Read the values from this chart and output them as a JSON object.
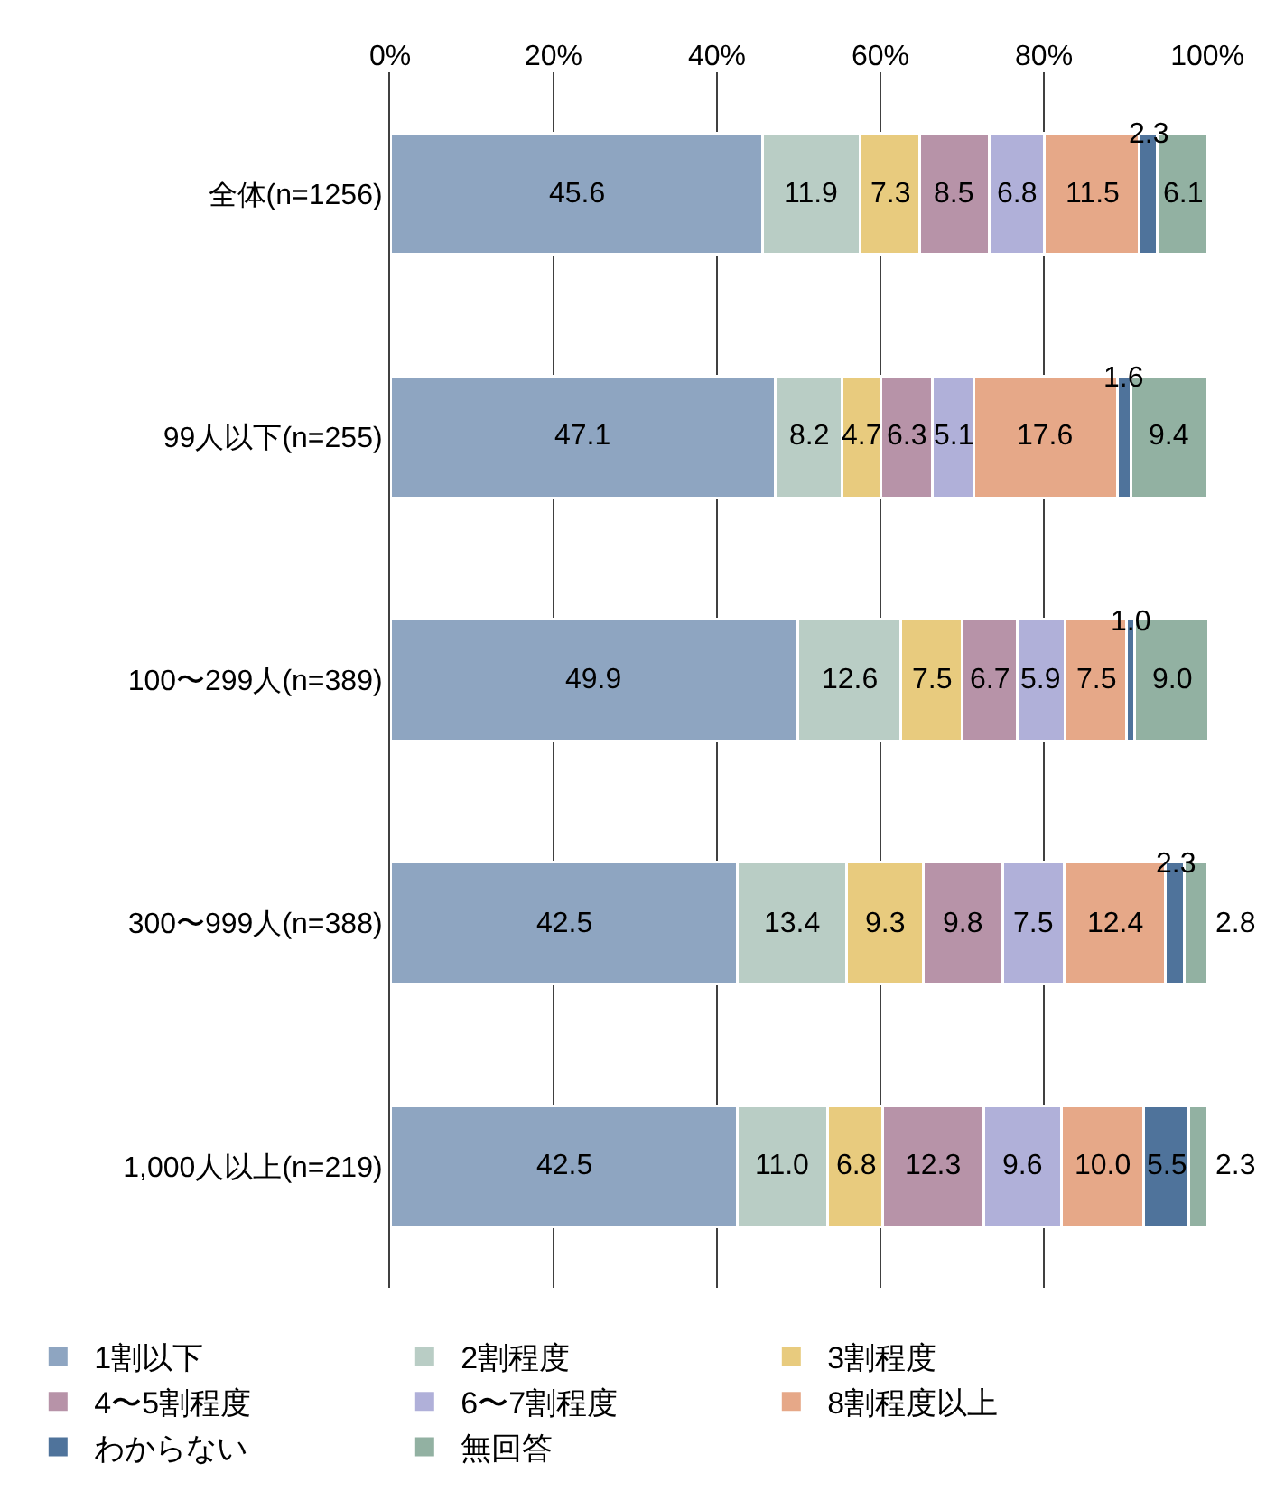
{
  "chart_data": {
    "type": "bar",
    "orientation": "horizontal",
    "stacked": true,
    "grid": "x",
    "legend": "bottom",
    "categories": [
      "全体(n=1256)",
      "99人以下(n=255)",
      "100〜299人(n=389)",
      "300〜999人(n=388)",
      "1,000人以上(n=219)"
    ],
    "xlim": [
      0,
      100.1
    ],
    "xticks": [
      {
        "value": 0,
        "label": "0%"
      },
      {
        "value": 20,
        "label": "20%"
      },
      {
        "value": 40,
        "label": "40%"
      },
      {
        "value": 60,
        "label": "60%"
      },
      {
        "value": 80,
        "label": "80%"
      },
      {
        "value": 100,
        "label": "100%"
      }
    ],
    "series": [
      {
        "name": "1割以下",
        "color": "#8ea5c1",
        "values": [
          45.6,
          47.1,
          49.9,
          42.5,
          42.5
        ],
        "value_labels": [
          "45.6",
          "47.1",
          "49.9",
          "42.5",
          "42.5"
        ]
      },
      {
        "name": "2割程度",
        "color": "#b9cdc5",
        "values": [
          11.9,
          8.2,
          12.6,
          13.4,
          11.0
        ],
        "value_labels": [
          "11.9",
          "8.2",
          "12.6",
          "13.4",
          "11.0"
        ]
      },
      {
        "name": "3割程度",
        "color": "#e8cb7e",
        "values": [
          7.3,
          4.7,
          7.5,
          9.3,
          6.8
        ],
        "value_labels": [
          "7.3",
          "4.7",
          "7.5",
          "9.3",
          "6.8"
        ]
      },
      {
        "name": "4〜5割程度",
        "color": "#b793a8",
        "values": [
          8.5,
          6.3,
          6.7,
          9.8,
          12.3
        ],
        "value_labels": [
          "8.5",
          "6.3",
          "6.7",
          "9.8",
          "12.3"
        ]
      },
      {
        "name": "6〜7割程度",
        "color": "#b0b0d9",
        "values": [
          6.8,
          5.1,
          5.9,
          7.5,
          9.6
        ],
        "value_labels": [
          "6.8",
          "5.1",
          "5.9",
          "7.5",
          "9.6"
        ]
      },
      {
        "name": "8割程度以上",
        "color": "#e6a888",
        "values": [
          11.5,
          17.6,
          7.5,
          12.4,
          10.0
        ],
        "value_labels": [
          "11.5",
          "17.6",
          "7.5",
          "12.4",
          "10.0"
        ]
      },
      {
        "name": "わからない",
        "color": "#4f739b",
        "values": [
          2.3,
          1.6,
          1.0,
          2.3,
          5.5
        ],
        "value_labels": [
          "2.3",
          "1.6",
          "1.0",
          "2.3",
          "5.5"
        ]
      },
      {
        "name": "無回答",
        "color": "#92b1a2",
        "values": [
          6.1,
          9.4,
          9.0,
          2.8,
          2.3
        ],
        "value_labels": [
          "6.1",
          "9.4",
          "9.0",
          "2.8",
          "2.3"
        ]
      }
    ]
  }
}
